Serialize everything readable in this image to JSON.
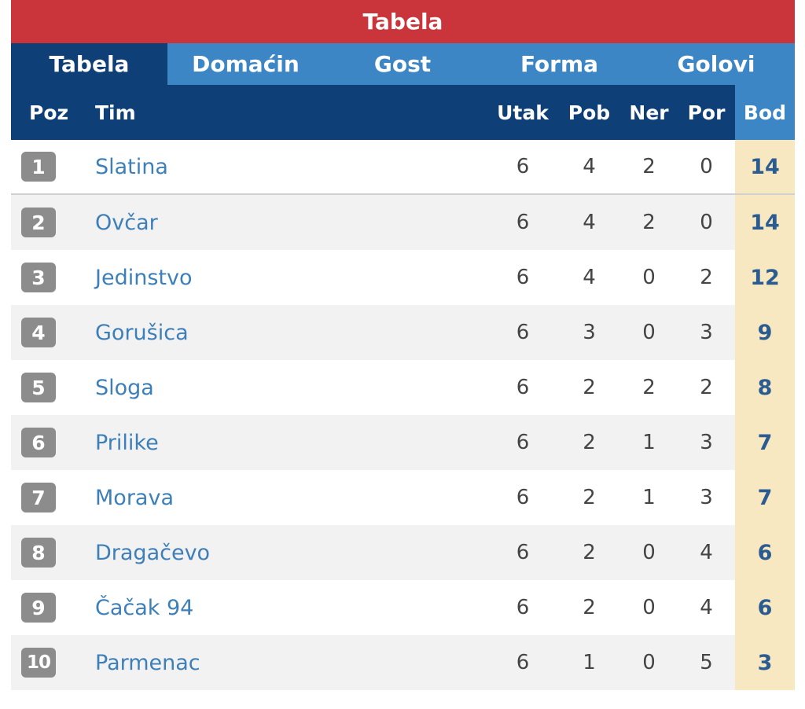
{
  "widget": {
    "title": "Tabela",
    "tabs": [
      {
        "label": "Tabela",
        "active": true
      },
      {
        "label": "Domaćin",
        "active": false
      },
      {
        "label": "Gost",
        "active": false
      },
      {
        "label": "Forma",
        "active": false
      },
      {
        "label": "Golovi",
        "active": false
      }
    ],
    "columns": {
      "poz": "Poz",
      "tim": "Tim",
      "utak": "Utak",
      "pob": "Pob",
      "ner": "Ner",
      "por": "Por",
      "bod": "Bod"
    },
    "rows": [
      {
        "poz": "1",
        "tim": "Slatina",
        "utak": "6",
        "pob": "4",
        "ner": "2",
        "por": "0",
        "bod": "14"
      },
      {
        "poz": "2",
        "tim": "Ovčar",
        "utak": "6",
        "pob": "4",
        "ner": "2",
        "por": "0",
        "bod": "14"
      },
      {
        "poz": "3",
        "tim": "Jedinstvo",
        "utak": "6",
        "pob": "4",
        "ner": "0",
        "por": "2",
        "bod": "12"
      },
      {
        "poz": "4",
        "tim": "Gorušica",
        "utak": "6",
        "pob": "3",
        "ner": "0",
        "por": "3",
        "bod": "9"
      },
      {
        "poz": "5",
        "tim": "Sloga",
        "utak": "6",
        "pob": "2",
        "ner": "2",
        "por": "2",
        "bod": "8"
      },
      {
        "poz": "6",
        "tim": "Prilike",
        "utak": "6",
        "pob": "2",
        "ner": "1",
        "por": "3",
        "bod": "7"
      },
      {
        "poz": "7",
        "tim": "Morava",
        "utak": "6",
        "pob": "2",
        "ner": "1",
        "por": "3",
        "bod": "7"
      },
      {
        "poz": "8",
        "tim": "Dragačevo",
        "utak": "6",
        "pob": "2",
        "ner": "0",
        "por": "4",
        "bod": "6"
      },
      {
        "poz": "9",
        "tim": "Čačak 94",
        "utak": "6",
        "pob": "2",
        "ner": "0",
        "por": "4",
        "bod": "6"
      },
      {
        "poz": "10",
        "tim": "Parmenac",
        "utak": "6",
        "pob": "1",
        "ner": "0",
        "por": "5",
        "bod": "3"
      }
    ]
  },
  "colors": {
    "title_bar": "#c9353b",
    "tab_bar": "#3d86c6",
    "active_tab": "#0e3f77",
    "header": "#0e3f77",
    "points_column": "#f8e8c2",
    "team_link": "#3d7fb8",
    "position_badge": "#8c8c8c"
  }
}
